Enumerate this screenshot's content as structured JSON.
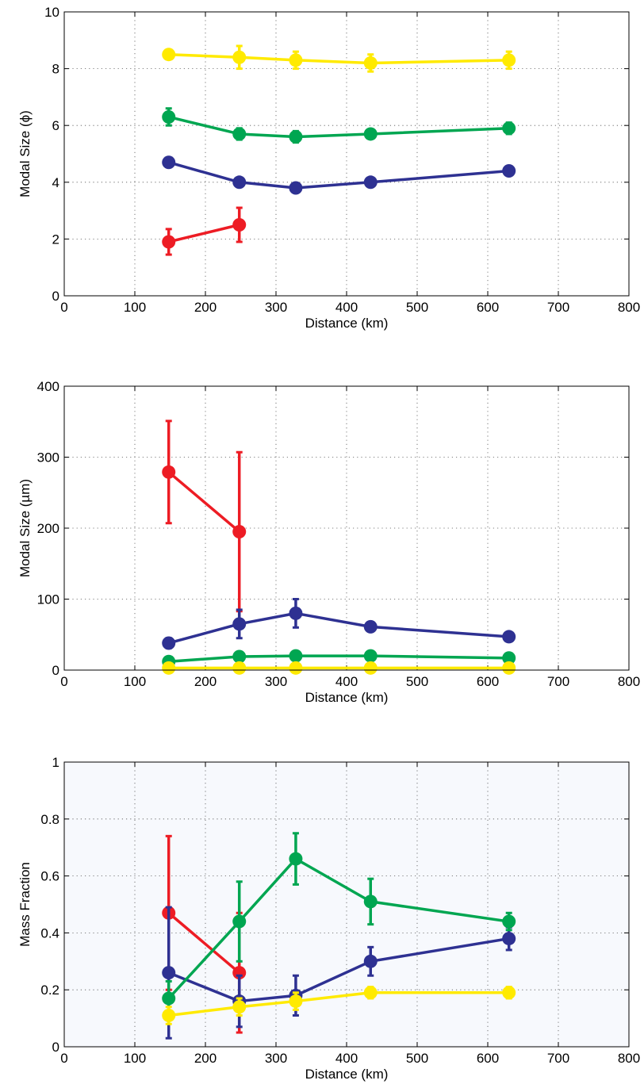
{
  "chart_data": [
    {
      "type": "line",
      "xlabel": "Distance (km)",
      "ylabel": "Modal Size (ϕ)",
      "xlim": [
        0,
        800
      ],
      "ylim": [
        0,
        10
      ],
      "xticks": [
        "0",
        "100",
        "200",
        "300",
        "400",
        "500",
        "600",
        "700",
        "800"
      ],
      "yticks": [
        "0",
        "2",
        "4",
        "6",
        "8",
        "10"
      ],
      "grid": true,
      "background": "#ffffff",
      "series": [
        {
          "color": "#ffea00",
          "x": [
            148,
            248,
            328,
            434,
            630
          ],
          "y": [
            8.5,
            8.4,
            8.3,
            8.2,
            8.3
          ],
          "err": [
            0.1,
            0.4,
            0.3,
            0.3,
            0.3
          ]
        },
        {
          "color": "#00a651",
          "x": [
            148,
            248,
            328,
            434,
            630
          ],
          "y": [
            6.3,
            5.7,
            5.6,
            5.7,
            5.9
          ],
          "err": [
            0.3,
            0.2,
            0.2,
            0.1,
            0.2
          ]
        },
        {
          "color": "#2e3192",
          "x": [
            148,
            248,
            328,
            434,
            630
          ],
          "y": [
            4.7,
            4.0,
            3.8,
            4.0,
            4.4
          ],
          "err": [
            0.1,
            0.1,
            0.1,
            0.1,
            0.1
          ]
        },
        {
          "color": "#ed1c24",
          "x": [
            148,
            248
          ],
          "y": [
            1.9,
            2.5
          ],
          "err": [
            0.45,
            0.6
          ]
        }
      ]
    },
    {
      "type": "line",
      "xlabel": "Distance (km)",
      "ylabel": "Modal Size (µm)",
      "xlim": [
        0,
        800
      ],
      "ylim": [
        0,
        400
      ],
      "xticks": [
        "0",
        "100",
        "200",
        "300",
        "400",
        "500",
        "600",
        "700",
        "800"
      ],
      "yticks": [
        "0",
        "100",
        "200",
        "300",
        "400"
      ],
      "grid": true,
      "background": "#ffffff",
      "series": [
        {
          "color": "#ed1c24",
          "x": [
            148,
            248
          ],
          "y": [
            279,
            195
          ],
          "err": [
            72,
            112
          ]
        },
        {
          "color": "#2e3192",
          "x": [
            148,
            248,
            328,
            434,
            630
          ],
          "y": [
            38,
            65,
            80,
            61,
            47
          ],
          "err": [
            7,
            20,
            20,
            4,
            6
          ]
        },
        {
          "color": "#00a651",
          "x": [
            148,
            248,
            328,
            434,
            630
          ],
          "y": [
            12,
            19,
            20,
            20,
            17
          ],
          "err": [
            3,
            3,
            3,
            3,
            3
          ]
        },
        {
          "color": "#ffea00",
          "x": [
            148,
            248,
            328,
            434,
            630
          ],
          "y": [
            3,
            3,
            3,
            3,
            3
          ],
          "err": [
            1,
            1,
            1,
            1,
            1
          ]
        }
      ]
    },
    {
      "type": "line",
      "xlabel": "Distance (km)",
      "ylabel": "Mass Fraction",
      "xlim": [
        0,
        800
      ],
      "ylim": [
        0,
        1
      ],
      "xticks": [
        "0",
        "100",
        "200",
        "300",
        "400",
        "500",
        "600",
        "700",
        "800"
      ],
      "yticks": [
        "0",
        "0.2",
        "0.4",
        "0.6",
        "0.8",
        "1"
      ],
      "grid": true,
      "background": "#f7f9fd",
      "series": [
        {
          "color": "#ed1c24",
          "x": [
            148,
            248
          ],
          "y": [
            0.47,
            0.26
          ],
          "err": [
            0.27,
            0.21
          ]
        },
        {
          "color": "#2e3192",
          "x": [
            148,
            248,
            328,
            434,
            630
          ],
          "y": [
            0.26,
            0.16,
            0.18,
            0.3,
            0.38
          ],
          "err": [
            0.23,
            0.09,
            0.07,
            0.05,
            0.04
          ]
        },
        {
          "color": "#00a651",
          "x": [
            148,
            248,
            328,
            434,
            630
          ],
          "y": [
            0.17,
            0.44,
            0.66,
            0.51,
            0.44
          ],
          "err": [
            0.06,
            0.14,
            0.09,
            0.08,
            0.03
          ]
        },
        {
          "color": "#ffea00",
          "x": [
            148,
            248,
            328,
            434,
            630
          ],
          "y": [
            0.11,
            0.14,
            0.16,
            0.19,
            0.19
          ],
          "err": [
            0.03,
            0.03,
            0.03,
            0.02,
            0.02
          ]
        }
      ]
    }
  ]
}
